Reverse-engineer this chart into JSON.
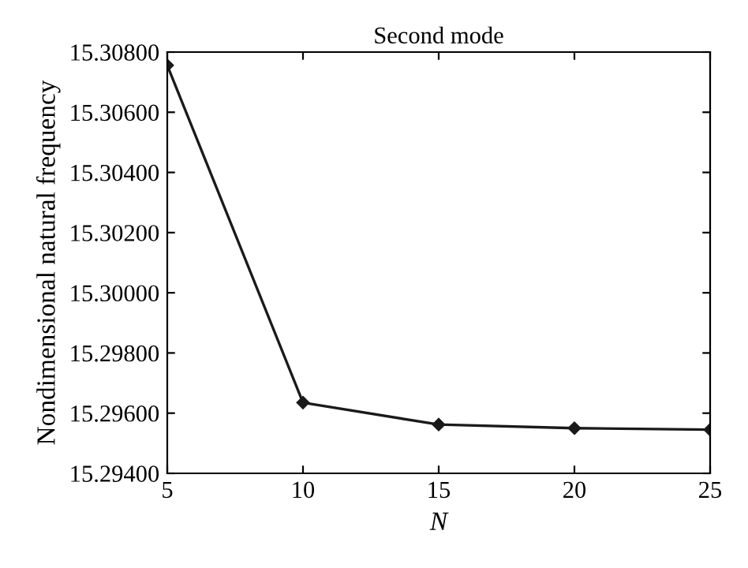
{
  "chart_data": {
    "type": "line",
    "title": "Second mode",
    "xlabel": "N",
    "ylabel": "Nondimensional natural frequency",
    "x": [
      5,
      10,
      15,
      20,
      25
    ],
    "series": [
      {
        "color": "#1a1a1a",
        "values": [
          15.30756,
          15.29635,
          15.29562,
          15.2955,
          15.29545
        ]
      }
    ],
    "xlim": [
      5,
      25
    ],
    "xticks": [
      5,
      10,
      15,
      20,
      25
    ],
    "ylim": [
      15.294,
      15.308
    ],
    "yticks": [
      {
        "value": 15.294,
        "label": "15.29400"
      },
      {
        "value": 15.296,
        "label": "15.29600"
      },
      {
        "value": 15.298,
        "label": "15.29800"
      },
      {
        "value": 15.3,
        "label": "15.30000"
      },
      {
        "value": 15.302,
        "label": "15.30200"
      },
      {
        "value": 15.304,
        "label": "15.30400"
      },
      {
        "value": 15.306,
        "label": "15.30600"
      },
      {
        "value": 15.308,
        "label": "15.30800"
      }
    ],
    "grid": false,
    "marker": "diamond",
    "line_style": "solid"
  }
}
